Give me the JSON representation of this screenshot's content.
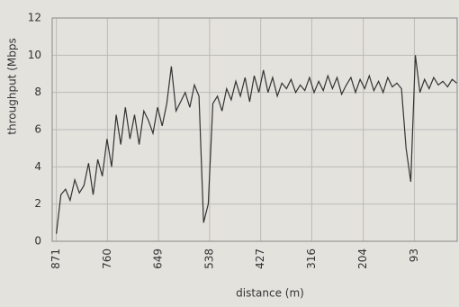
{
  "chart_data": {
    "type": "line",
    "x_label": "distance (m)",
    "y_label": "throughput (Mbps",
    "x": [
      871,
      861,
      851,
      841,
      831,
      821,
      811,
      801,
      791,
      781,
      771,
      761,
      751,
      741,
      731,
      721,
      711,
      701,
      691,
      681,
      671,
      661,
      651,
      641,
      631,
      621,
      611,
      601,
      591,
      581,
      571,
      561,
      551,
      541,
      531,
      521,
      511,
      501,
      491,
      481,
      471,
      461,
      451,
      441,
      431,
      421,
      411,
      401,
      391,
      381,
      371,
      361,
      351,
      341,
      331,
      321,
      311,
      301,
      291,
      281,
      271,
      261,
      251,
      241,
      231,
      221,
      211,
      201,
      191,
      181,
      171,
      161,
      151,
      141,
      131,
      121,
      111,
      101,
      91,
      81,
      71,
      61,
      51,
      41,
      31,
      21,
      11,
      1
    ],
    "values": [
      0.4,
      2.5,
      2.8,
      2.2,
      3.3,
      2.6,
      3.0,
      4.2,
      2.5,
      4.4,
      3.5,
      5.5,
      4.0,
      6.8,
      5.2,
      7.2,
      5.5,
      6.8,
      5.2,
      7.0,
      6.5,
      5.8,
      7.2,
      6.2,
      7.4,
      9.4,
      7.0,
      7.5,
      8.0,
      7.2,
      8.4,
      7.8,
      1.0,
      2.0,
      7.4,
      7.8,
      7.0,
      8.2,
      7.6,
      8.6,
      7.8,
      8.8,
      7.5,
      8.9,
      8.0,
      9.2,
      8.0,
      8.8,
      7.8,
      8.5,
      8.2,
      8.7,
      8.0,
      8.4,
      8.1,
      8.8,
      8.0,
      8.6,
      8.1,
      8.9,
      8.2,
      8.8,
      7.9,
      8.4,
      8.8,
      8.0,
      8.7,
      8.2,
      8.9,
      8.1,
      8.6,
      8.0,
      8.8,
      8.3,
      8.5,
      8.2,
      5.0,
      3.2,
      10.0,
      8.0,
      8.7,
      8.2,
      8.8,
      8.4,
      8.6,
      8.3,
      8.7,
      8.5
    ],
    "color": "#333333",
    "xlim": [
      880,
      0
    ],
    "xticks": [
      871,
      760,
      649,
      538,
      427,
      316,
      204,
      93
    ],
    "ylim": [
      0,
      12
    ],
    "yticks": [
      0,
      2,
      4,
      6,
      8,
      10,
      12
    ],
    "grid": true
  }
}
